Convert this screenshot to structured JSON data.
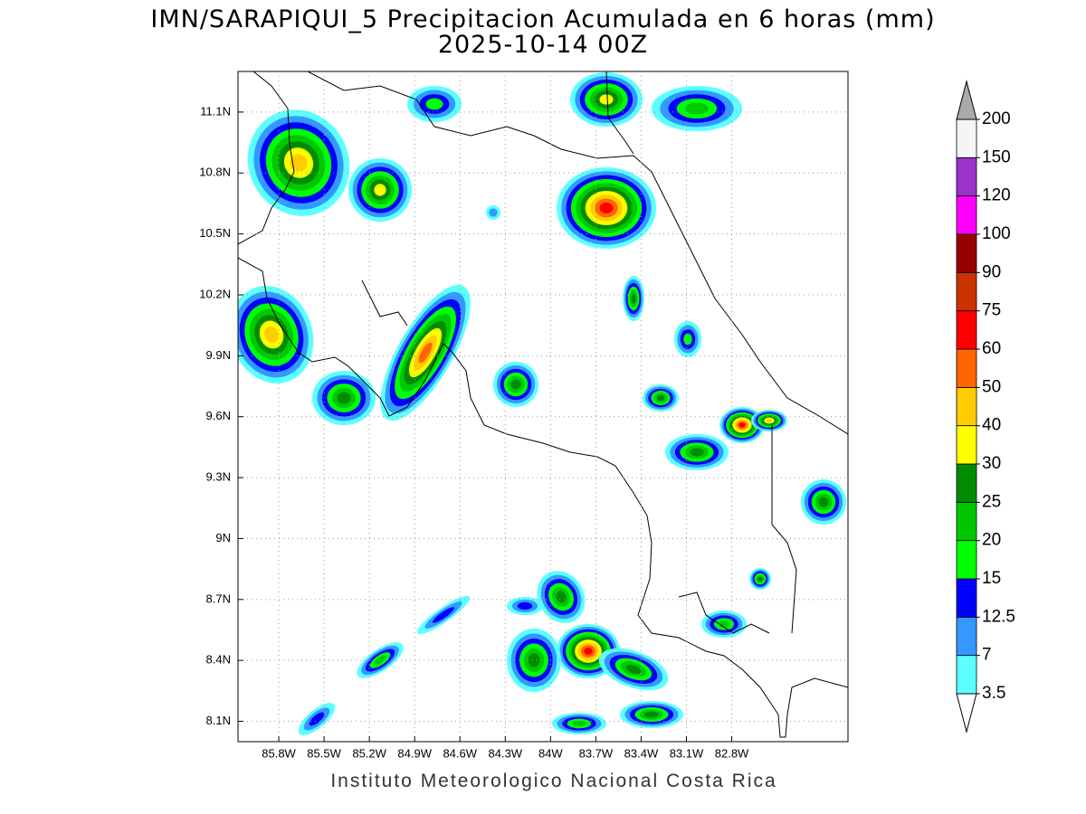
{
  "title": [
    "IMN/SARAPIQUI_5 Precipitacion Acumulada en 6 horas (mm)",
    "2025-10-14 00Z"
  ],
  "map": {
    "xlim": [
      -86.07,
      -82.03
    ],
    "ylim": [
      8.0,
      11.3
    ],
    "xticks": [
      {
        "value": -85.8,
        "label": "85.8W"
      },
      {
        "value": -85.5,
        "label": "85.5W"
      },
      {
        "value": -85.2,
        "label": "85.2W"
      },
      {
        "value": -84.9,
        "label": "84.9W"
      },
      {
        "value": -84.6,
        "label": "84.6W"
      },
      {
        "value": -84.3,
        "label": "84.3W"
      },
      {
        "value": -84.0,
        "label": "84W"
      },
      {
        "value": -83.7,
        "label": "83.7W"
      },
      {
        "value": -83.4,
        "label": "83.4W"
      },
      {
        "value": -83.1,
        "label": "83.1W"
      },
      {
        "value": -82.8,
        "label": "82.8W"
      }
    ],
    "yticks": [
      {
        "value": 11.1,
        "label": "11.1N"
      },
      {
        "value": 10.8,
        "label": "10.8N"
      },
      {
        "value": 10.5,
        "label": "10.5N"
      },
      {
        "value": 10.2,
        "label": "10.2N"
      },
      {
        "value": 9.9,
        "label": "9.9N"
      },
      {
        "value": 9.6,
        "label": "9.6N"
      },
      {
        "value": 9.3,
        "label": "9.3N"
      },
      {
        "value": 9,
        "label": "9N"
      },
      {
        "value": 8.7,
        "label": "8.7N"
      },
      {
        "value": 8.4,
        "label": "8.4N"
      },
      {
        "value": 8.1,
        "label": "8.1N"
      }
    ],
    "grid": true
  },
  "colorbar": {
    "levels": [
      3.5,
      7,
      12.5,
      15,
      20,
      25,
      30,
      40,
      50,
      60,
      75,
      90,
      100,
      120,
      150,
      200
    ],
    "colors": [
      "#5cffff",
      "#3399ff",
      "#0000ff",
      "#00ff00",
      "#00c800",
      "#008c00",
      "#ffff00",
      "#ffcc00",
      "#ff6600",
      "#ff0000",
      "#cc3300",
      "#990000",
      "#ff00ff",
      "#9933cc",
      "#f5f5f5"
    ],
    "over_color": "#aaaaaa",
    "under_color": "#ffffff"
  },
  "footer": "Instituto Meteorologico Nacional Costa Rica"
}
